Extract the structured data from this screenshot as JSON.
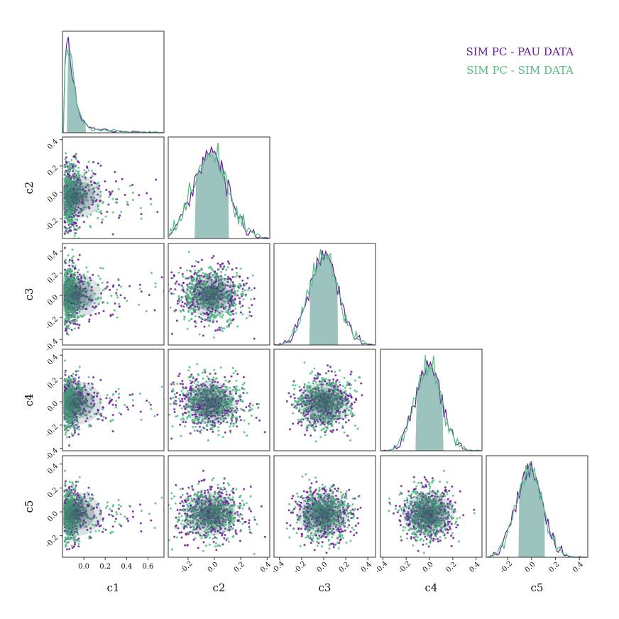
{
  "chart_data": {
    "type": "scatter",
    "variables": [
      "c1",
      "c2",
      "c3",
      "c4",
      "c5"
    ],
    "ranges": {
      "c1": [
        -0.2,
        0.75
      ],
      "c2": [
        -0.35,
        0.42
      ],
      "c3": [
        -0.45,
        0.47
      ],
      "c4": [
        -0.42,
        0.45
      ],
      "c5": [
        -0.38,
        0.47
      ]
    },
    "ticks": {
      "c1": [
        0.0,
        0.2,
        0.4,
        0.6
      ],
      "c2": [
        -0.2,
        0.0,
        0.2,
        0.4
      ],
      "c3": [
        -0.4,
        -0.2,
        0.0,
        0.2,
        0.4
      ],
      "c4": [
        -0.4,
        -0.2,
        0.0,
        0.2,
        0.4
      ],
      "c5": [
        -0.2,
        0.0,
        0.2,
        0.4
      ]
    },
    "series": [
      {
        "name": "SIM PC - PAU DATA",
        "color": "#6a1b9a",
        "centers": {
          "c1": -0.07,
          "c2": -0.03,
          "c3": 0.0,
          "c4": -0.01,
          "c5": -0.02
        },
        "spread": {
          "c1": 0.14,
          "c2": 0.13,
          "c3": 0.13,
          "c4": 0.11,
          "c5": 0.11
        },
        "hist_peaks": {
          "c1": -0.13,
          "c2": -0.02,
          "c3": 0.0,
          "c4": -0.01,
          "c5": -0.03
        }
      },
      {
        "name": "SIM PC - SIM DATA",
        "color": "#4fc07f",
        "centers": {
          "c1": -0.08,
          "c2": -0.03,
          "c3": 0.0,
          "c4": -0.01,
          "c5": -0.02
        },
        "spread": {
          "c1": 0.15,
          "c2": 0.13,
          "c3": 0.13,
          "c4": 0.11,
          "c5": 0.11
        },
        "hist_peaks": {
          "c1": -0.18,
          "c2": -0.03,
          "c3": -0.01,
          "c4": -0.01,
          "c5": -0.03
        }
      }
    ],
    "quantile_bands": {
      "c1": [
        -0.16,
        0.02
      ],
      "c2": [
        -0.15,
        0.11
      ],
      "c3": [
        -0.13,
        0.13
      ],
      "c4": [
        -0.12,
        0.12
      ],
      "c5": [
        -0.11,
        0.11
      ]
    },
    "xlabels": [
      "c1",
      "c2",
      "c3",
      "c4",
      "c5"
    ],
    "ylabels": [
      "c2",
      "c3",
      "c4",
      "c5"
    ],
    "legend_position": "top-right",
    "band_color": "#9fb2c4",
    "frame_color": "#333333"
  }
}
